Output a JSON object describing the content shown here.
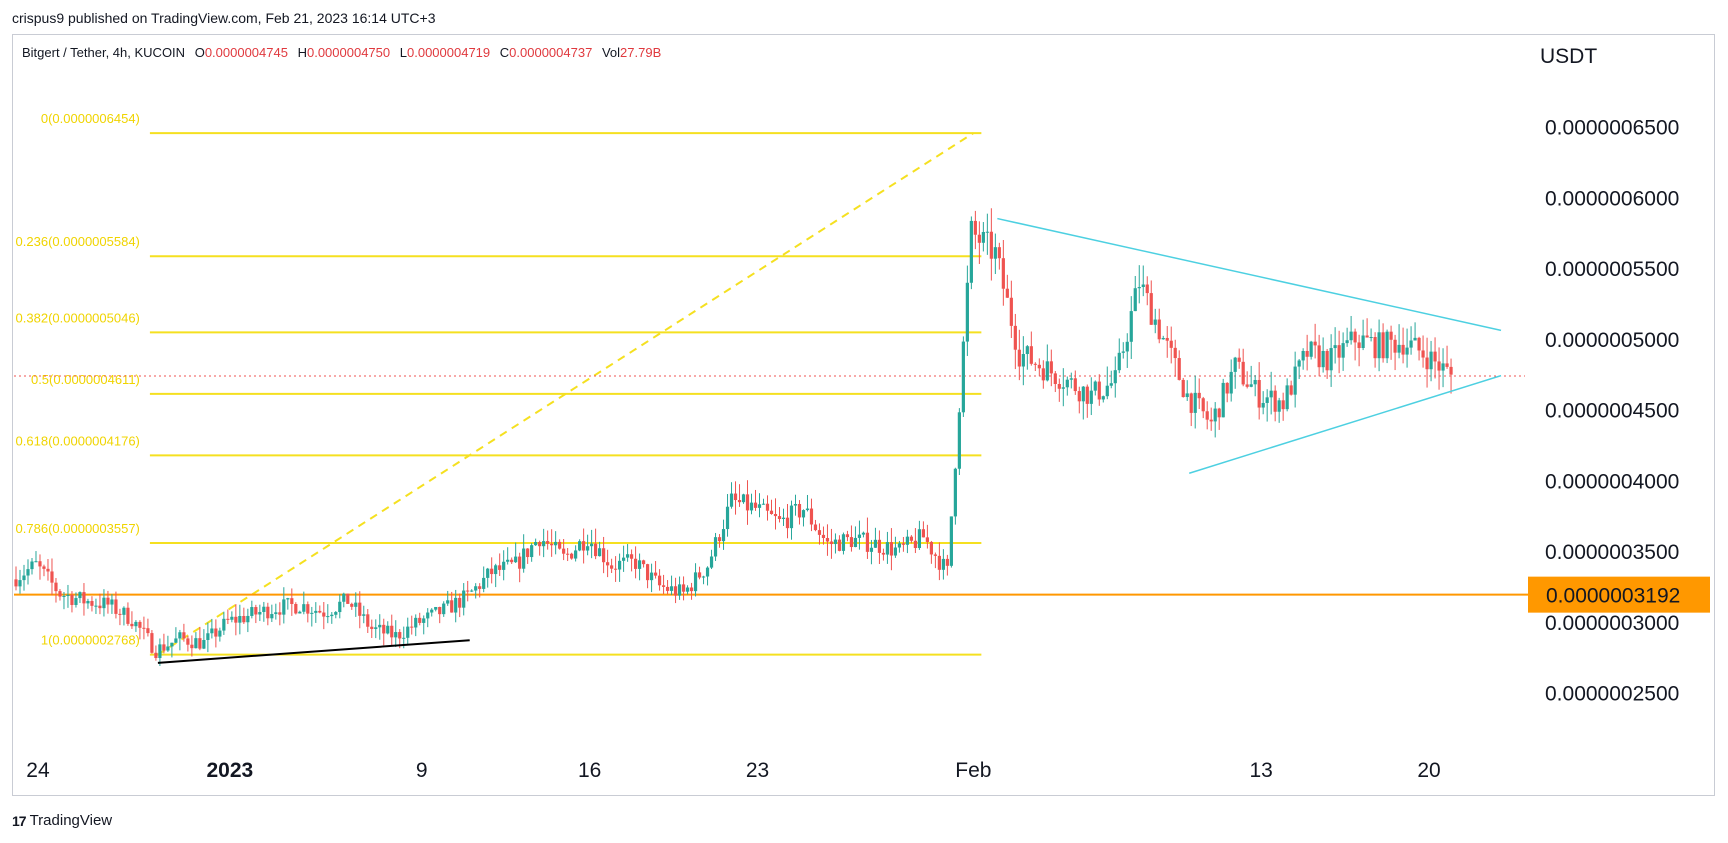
{
  "header": {
    "published": "crispus9 published on TradingView.com, Feb 21, 2023 16:14 UTC+3"
  },
  "legend": {
    "symbol": "Bitgert / Tether, 4h, KUCOIN",
    "o_label": "O",
    "o_value": "0.0000004745",
    "h_label": "H",
    "h_value": "0.0000004750",
    "l_label": "L",
    "l_value": "0.0000004719",
    "c_label": "C",
    "c_value": "0.0000004737",
    "vol_label": "Vol",
    "vol_value": "27.79B"
  },
  "footer": {
    "brand": "TradingView"
  },
  "colors": {
    "up": "#26a69a",
    "down": "#ef5350",
    "fib": "#f5e020",
    "support": "#ff9800",
    "triangle": "#4dd0e1",
    "trend": "#000000",
    "last": "#ef5350"
  },
  "chart_data": {
    "type": "candlestick",
    "currency": "USDT",
    "y_ticks": [
      "0.0000006500",
      "0.0000006000",
      "0.0000005500",
      "0.0000005000",
      "0.0000004500",
      "0.0000004000",
      "0.0000003500",
      "0.0000003000",
      "0.0000002500"
    ],
    "y_tick_values": [
      6.5e-07,
      6e-07,
      5.5e-07,
      5e-07,
      4.5e-07,
      4e-07,
      3.5e-07,
      3e-07,
      2.5e-07
    ],
    "ylim": [
      2.2e-07,
      6.9e-07
    ],
    "x_ticks": [
      {
        "label": "24",
        "date": "2022-12-24",
        "bold": false
      },
      {
        "label": "2023",
        "date": "2023-01-01",
        "bold": true
      },
      {
        "label": "9",
        "date": "2023-01-09",
        "bold": false
      },
      {
        "label": "16",
        "date": "2023-01-16",
        "bold": false
      },
      {
        "label": "23",
        "date": "2023-01-23",
        "bold": false
      },
      {
        "label": "Feb",
        "date": "2023-02-01",
        "bold": false
      },
      {
        "label": "13",
        "date": "2023-02-13",
        "bold": false
      },
      {
        "label": "20",
        "date": "2023-02-20",
        "bold": false
      }
    ],
    "xlim": [
      "2022-12-23",
      "2023-02-24"
    ],
    "fib_levels": [
      {
        "label": "0(0.0000006454)",
        "value": 6.454e-07
      },
      {
        "label": "0.236(0.0000005584)",
        "value": 5.584e-07
      },
      {
        "label": "0.382(0.0000005046)",
        "value": 5.046e-07
      },
      {
        "label": "0.5(0.0000004611)",
        "value": 4.611e-07
      },
      {
        "label": "0.618(0.0000004176)",
        "value": 4.176e-07
      },
      {
        "label": "0.786(0.0000003557)",
        "value": 3.557e-07
      },
      {
        "label": "1(0.0000002768)",
        "value": 2.768e-07
      }
    ],
    "fib_range": {
      "start": "2022-12-29",
      "end": "2023-02-01"
    },
    "support_level": {
      "value": 3.192e-07,
      "label": "0.0000003192"
    },
    "last_price": 4.737e-07,
    "triangle_upper": [
      [
        "2023-02-02",
        5.85e-07
      ],
      [
        "2023-02-23",
        5.06e-07
      ]
    ],
    "triangle_lower": [
      [
        "2023-02-10",
        4.05e-07
      ],
      [
        "2023-02-23",
        4.74e-07
      ]
    ],
    "trendline": [
      [
        "2022-12-29",
        2.71e-07
      ],
      [
        "2023-01-11",
        2.87e-07
      ]
    ],
    "closes": [
      [
        "2022-12-23",
        3.3e-07
      ],
      [
        "2022-12-24",
        3.4e-07
      ],
      [
        "2022-12-25",
        3.2e-07
      ],
      [
        "2022-12-26",
        3.15e-07
      ],
      [
        "2022-12-27",
        3.12e-07
      ],
      [
        "2022-12-28",
        3.02e-07
      ],
      [
        "2022-12-29",
        2.8e-07
      ],
      [
        "2022-12-30",
        2.88e-07
      ],
      [
        "2022-12-31",
        2.85e-07
      ],
      [
        "2023-01-01",
        3e-07
      ],
      [
        "2023-01-02",
        3.05e-07
      ],
      [
        "2023-01-03",
        3.1e-07
      ],
      [
        "2023-01-04",
        3.12e-07
      ],
      [
        "2023-01-05",
        3.07e-07
      ],
      [
        "2023-01-06",
        3.15e-07
      ],
      [
        "2023-01-07",
        2.95e-07
      ],
      [
        "2023-01-08",
        2.9e-07
      ],
      [
        "2023-01-09",
        3e-07
      ],
      [
        "2023-01-10",
        3.08e-07
      ],
      [
        "2023-01-11",
        3.18e-07
      ],
      [
        "2023-01-12",
        3.35e-07
      ],
      [
        "2023-01-13",
        3.4e-07
      ],
      [
        "2023-01-14",
        3.6e-07
      ],
      [
        "2023-01-15",
        3.45e-07
      ],
      [
        "2023-01-16",
        3.6e-07
      ],
      [
        "2023-01-17",
        3.4e-07
      ],
      [
        "2023-01-18",
        3.42e-07
      ],
      [
        "2023-01-19",
        3.25e-07
      ],
      [
        "2023-01-20",
        3.2e-07
      ],
      [
        "2023-01-21",
        3.4e-07
      ],
      [
        "2023-01-22",
        3.85e-07
      ],
      [
        "2023-01-23",
        3.8e-07
      ],
      [
        "2023-01-24",
        3.7e-07
      ],
      [
        "2023-01-25",
        3.8e-07
      ],
      [
        "2023-01-26",
        3.55e-07
      ],
      [
        "2023-01-27",
        3.58e-07
      ],
      [
        "2023-01-28",
        3.55e-07
      ],
      [
        "2023-01-29",
        3.5e-07
      ],
      [
        "2023-01-30",
        3.6e-07
      ],
      [
        "2023-01-31",
        3.35e-07
      ],
      [
        "2023-02-01",
        5.75e-07
      ],
      [
        "2023-02-02",
        5.6e-07
      ],
      [
        "2023-02-03",
        4.9e-07
      ],
      [
        "2023-02-04",
        4.8e-07
      ],
      [
        "2023-02-05",
        4.7e-07
      ],
      [
        "2023-02-06",
        4.6e-07
      ],
      [
        "2023-02-07",
        4.7e-07
      ],
      [
        "2023-02-08",
        5.4e-07
      ],
      [
        "2023-02-09",
        5e-07
      ],
      [
        "2023-02-10",
        4.6e-07
      ],
      [
        "2023-02-11",
        4.4e-07
      ],
      [
        "2023-02-12",
        4.8e-07
      ],
      [
        "2023-02-13",
        4.6e-07
      ],
      [
        "2023-02-14",
        4.55e-07
      ],
      [
        "2023-02-15",
        4.9e-07
      ],
      [
        "2023-02-16",
        4.85e-07
      ],
      [
        "2023-02-17",
        5e-07
      ],
      [
        "2023-02-18",
        4.95e-07
      ],
      [
        "2023-02-19",
        4.98e-07
      ],
      [
        "2023-02-20",
        4.88e-07
      ],
      [
        "2023-02-21",
        4.74e-07
      ]
    ]
  }
}
